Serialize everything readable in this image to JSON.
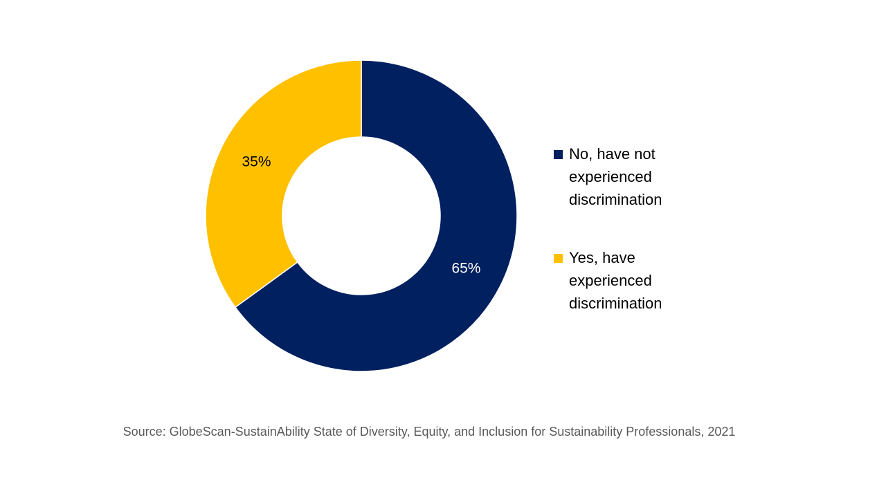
{
  "chart_data": {
    "type": "donut",
    "categories": [
      "No, have not experienced discrimination",
      "Yes, have experienced discrimination"
    ],
    "values": [
      65,
      35
    ],
    "value_labels": [
      "65%",
      "35%"
    ],
    "colors": [
      "#002060",
      "#ffc000"
    ],
    "label_colors": [
      "#ffffff",
      "#000000"
    ],
    "source": "Source: GlobeScan-SustainAbility State of Diversity, Equity, and Inclusion for Sustainability Professionals, 2021"
  }
}
